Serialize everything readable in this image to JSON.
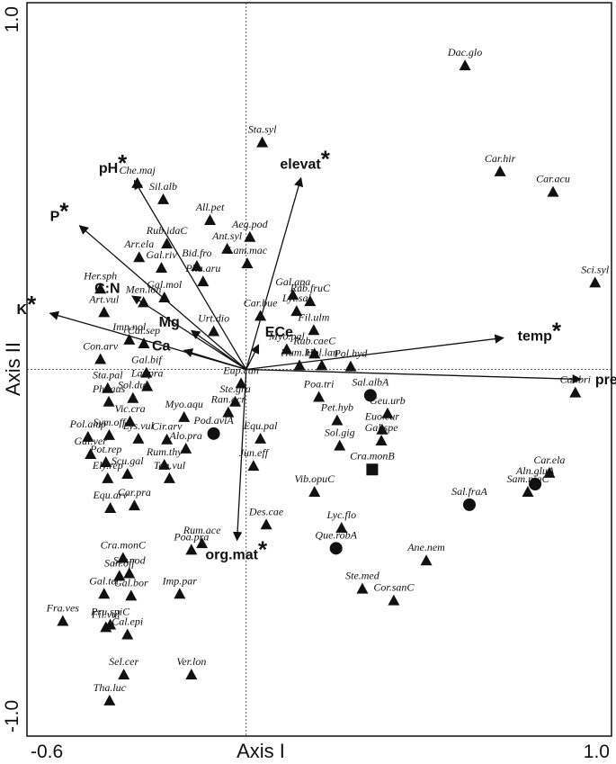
{
  "chart_data": {
    "type": "scatter",
    "xlabel": "Axis I",
    "ylabel": "Axis II",
    "xlim": [
      -0.6,
      1.0
    ],
    "ylim": [
      -1.0,
      1.0
    ],
    "xticks": [
      -0.6,
      {
        "value": 1.0,
        "label": "1.0"
      }
    ],
    "yticks": [
      {
        "value": -1.0,
        "label": "-1.0"
      },
      {
        "value": 1.0,
        "label": "1.0"
      }
    ],
    "origin_lines": true,
    "color": "#111111",
    "series": [
      {
        "marker": "triangle",
        "labels": [
          "Dac.glo",
          "Car.hir",
          "Car.acu",
          "Sci.syl",
          "Car.bri",
          "Car.ela",
          "Sam.nigC",
          "Sta.syl",
          "Che.maj",
          "Sil.alb",
          "All.pet",
          "Aeg.pod",
          "Ant.syl",
          "Rub.idaC",
          "Arr.ela",
          "Bid.fro",
          "Lam.mac",
          "Gal.riv",
          "Pha.aru",
          "Her.sph",
          "Gal.mol",
          "Men.lon",
          "Art.vul",
          "Cal.sep",
          "Imp.nol",
          "Con.arv",
          "Urt.dio",
          "Car.bue",
          "Gal.apa",
          "Rub.fruC",
          "Lyt.sal",
          "Fil.ulm",
          "Myo.pal",
          "Rub.caeC",
          "Hol.lan",
          "Hum.lup",
          "Pol.hyd",
          "Gal.bif",
          "Lat.pra",
          "Sta.pal",
          "Phr.aus",
          "Sol.dul",
          "Eup.can",
          "Ste.gra",
          "Ran.acr",
          "Equ.pal",
          "Vic.cra",
          "Myo.aqu",
          "Pol.amp",
          "Sym.off",
          "Lys.vul",
          "Cir.arv",
          "Alo.pra",
          "Gal.ver",
          "Rum.thy",
          "Pot.rep",
          "Scu.gal",
          "Tan.vul",
          "Ely.rep",
          "Equ.arv",
          "Car.pra",
          "Jun.eff",
          "Poa.tri",
          "Pet.hyb",
          "Sol.gig",
          "Geu.urb",
          "Euo.eur",
          "Gal.spe",
          "Vib.opuC",
          "Des.cae",
          "Lyc.flo",
          "Rum.ace",
          "Poa.pra",
          "Cra.monC",
          "Scr.nod",
          "San.off",
          "Gal.tet",
          "Gal.bor",
          "Pru.spiC",
          "Fil.vul",
          "Cal.epi",
          "Fra.ves",
          "Imp.par",
          "Ane.nem",
          "Ste.med",
          "Cor.sanC",
          "Ver.lon",
          "Sel.cer",
          "Tha.luc"
        ],
        "x": [
          0.599,
          0.695,
          0.84,
          0.955,
          0.901,
          0.83,
          0.771,
          0.044,
          -0.298,
          -0.227,
          -0.099,
          0.01,
          -0.052,
          -0.217,
          -0.293,
          -0.135,
          0.003,
          -0.232,
          -0.118,
          -0.399,
          -0.224,
          -0.281,
          -0.389,
          -0.28,
          -0.32,
          -0.399,
          -0.089,
          0.039,
          0.128,
          0.175,
          0.138,
          0.185,
          0.111,
          0.187,
          0.207,
          0.146,
          0.286,
          -0.273,
          -0.271,
          -0.379,
          -0.376,
          -0.31,
          -0.014,
          -0.03,
          -0.049,
          0.039,
          -0.318,
          -0.17,
          -0.433,
          -0.375,
          -0.295,
          -0.217,
          -0.165,
          -0.426,
          -0.224,
          -0.384,
          -0.325,
          -0.21,
          -0.379,
          -0.372,
          -0.306,
          0.02,
          0.199,
          0.249,
          0.256,
          0.387,
          0.372,
          0.37,
          0.187,
          0.055,
          0.261,
          -0.121,
          -0.15,
          -0.337,
          -0.32,
          -0.347,
          -0.389,
          -0.315,
          -0.372,
          -0.384,
          -0.325,
          -0.502,
          -0.182,
          0.493,
          0.318,
          0.404,
          -0.15,
          -0.335,
          -0.374
        ],
        "y": [
          0.828,
          0.539,
          0.483,
          0.236,
          -0.064,
          -0.283,
          -0.335,
          0.618,
          0.507,
          0.463,
          0.406,
          0.36,
          0.328,
          0.342,
          0.305,
          0.281,
          0.288,
          0.276,
          0.239,
          0.219,
          0.195,
          0.182,
          0.155,
          0.07,
          0.08,
          0.027,
          0.103,
          0.145,
          0.202,
          0.185,
          0.158,
          0.106,
          0.054,
          0.042,
          0.01,
          0.01,
          0.007,
          -0.01,
          -0.047,
          -0.052,
          -0.089,
          -0.079,
          -0.039,
          -0.089,
          -0.118,
          -0.19,
          -0.143,
          -0.131,
          -0.185,
          -0.18,
          -0.19,
          -0.192,
          -0.217,
          -0.232,
          -0.261,
          -0.254,
          -0.286,
          -0.298,
          -0.298,
          -0.379,
          -0.372,
          -0.264,
          -0.076,
          -0.14,
          -0.209,
          -0.121,
          -0.165,
          -0.195,
          -0.335,
          -0.424,
          -0.433,
          -0.475,
          -0.493,
          -0.515,
          -0.557,
          -0.564,
          -0.613,
          -0.618,
          -0.697,
          -0.704,
          -0.724,
          -0.687,
          -0.613,
          -0.522,
          -0.599,
          -0.631,
          -0.833,
          -0.833,
          -0.904
        ]
      },
      {
        "marker": "circle",
        "labels": [
          "Sal.albA",
          "Que.robA",
          "Sal.fraA",
          "Aln.gluA",
          "Pod.aviA"
        ],
        "x": [
          0.34,
          0.246,
          0.611,
          0.791,
          -0.089
        ],
        "y": [
          -0.071,
          -0.488,
          -0.369,
          -0.313,
          -0.175
        ]
      },
      {
        "marker": "square",
        "labels": [
          "Cra.monB"
        ],
        "x": [
          0.345
        ],
        "y": [
          -0.273
        ]
      }
    ],
    "vectors": {
      "labels": [
        "pH",
        "elevat",
        "P",
        "C:N",
        "K",
        "Mg",
        "Ca",
        "ECe",
        "temp",
        "precip",
        "org.mat"
      ],
      "marks": [
        "*",
        "*",
        "*",
        null,
        "*",
        null,
        null,
        null,
        "*",
        "*",
        "*"
      ],
      "x": [
        -0.306,
        0.15,
        -0.456,
        -0.312,
        -0.537,
        -0.15,
        -0.17,
        0.034,
        0.704,
        0.916,
        -0.025
      ],
      "y": [
        0.515,
        0.522,
        0.392,
        0.2,
        0.153,
        0.106,
        0.052,
        0.067,
        0.086,
        -0.027,
        -0.466
      ]
    }
  }
}
